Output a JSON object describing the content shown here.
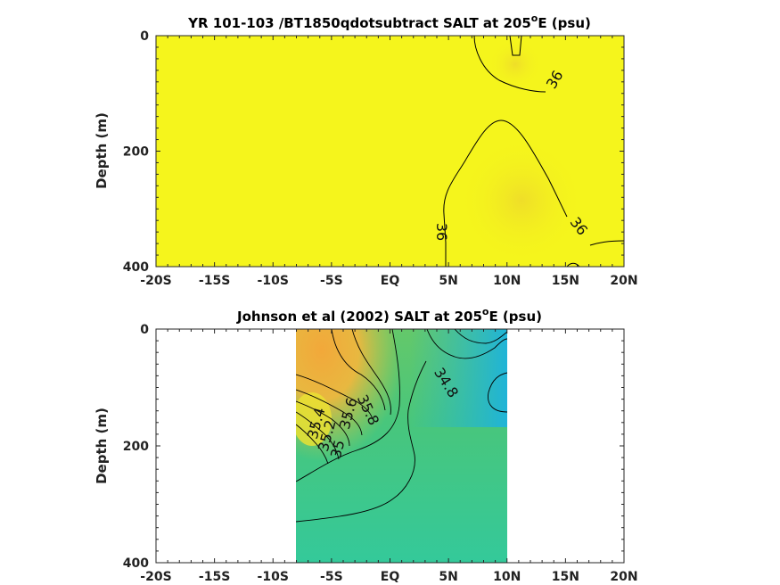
{
  "chart_data": [
    {
      "type": "heatmap",
      "title": "YR 101-103 /BT1850qdotsubtract SALT at 205",
      "title_sup": "o",
      "title_tail": "E (psu)",
      "ylabel": "Depth (m)",
      "x_ticks": [
        "-20S",
        "-15S",
        "-10S",
        "-5S",
        "EQ",
        "5N",
        "10N",
        "15N",
        "20N"
      ],
      "x_tick_values": [
        -20,
        -15,
        -10,
        -5,
        0,
        5,
        10,
        15,
        20
      ],
      "y_ticks": [
        "0",
        "200",
        "400"
      ],
      "y_tick_values": [
        0,
        200,
        400
      ],
      "xlim": [
        -20,
        20
      ],
      "ylim": [
        400,
        0
      ],
      "y_reversed": true,
      "data_extent_x": [
        -20,
        20
      ],
      "fill_color": "#f5f51c",
      "contour_labels": [
        "36",
        "36",
        "36"
      ]
    },
    {
      "type": "heatmap",
      "title": "Johnson et al (2002) SALT at 205",
      "title_sup": "o",
      "title_tail": "E (psu)",
      "ylabel": "Depth (m)",
      "x_ticks": [
        "-20S",
        "-15S",
        "-10S",
        "-5S",
        "EQ",
        "5N",
        "10N",
        "15N",
        "20N"
      ],
      "x_tick_values": [
        -20,
        -15,
        -10,
        -5,
        0,
        5,
        10,
        15,
        20
      ],
      "y_ticks": [
        "0",
        "200",
        "400"
      ],
      "y_tick_values": [
        0,
        200,
        400
      ],
      "xlim": [
        -20,
        20
      ],
      "ylim": [
        400,
        0
      ],
      "y_reversed": true,
      "data_extent_x": [
        -8,
        10
      ],
      "colors": {
        "high": "#f0a83c",
        "mid": "#5ec96a",
        "low": "#20b9d8",
        "deep": "#33c99a"
      },
      "contour_labels": [
        "34.8",
        "35",
        "35.2",
        "35.4",
        "35.6",
        "35.8"
      ]
    }
  ]
}
